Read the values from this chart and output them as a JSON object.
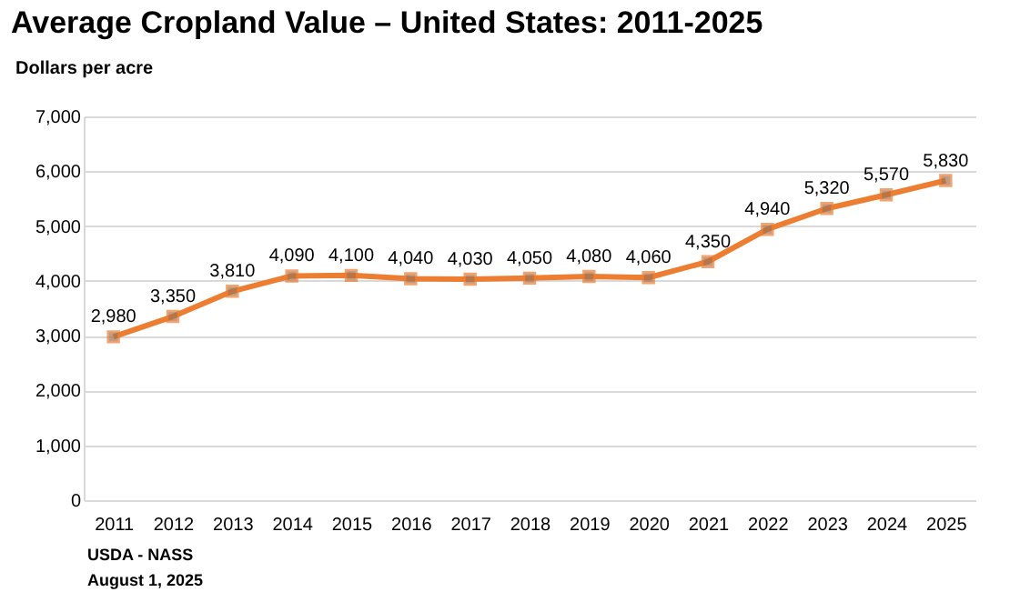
{
  "chart_data": {
    "type": "line",
    "title": "Average Cropland Value – United States: 2011-2025",
    "ylabel": "Dollars per acre",
    "categories": [
      "2011",
      "2012",
      "2013",
      "2014",
      "2015",
      "2016",
      "2017",
      "2018",
      "2019",
      "2020",
      "2021",
      "2022",
      "2023",
      "2024",
      "2025"
    ],
    "series": [
      {
        "color": "#ed7d31",
        "values": [
          2980,
          3350,
          3810,
          4090,
          4100,
          4040,
          4030,
          4050,
          4080,
          4060,
          4350,
          4940,
          5320,
          5570,
          5830
        ]
      }
    ],
    "value_labels": [
      "2,980",
      "3,350",
      "3,810",
      "4,090",
      "4,100",
      "4,040",
      "4,030",
      "4,050",
      "4,080",
      "4,060",
      "4,350",
      "4,940",
      "5,320",
      "5,570",
      "5,830"
    ],
    "ylim": [
      0,
      7000
    ],
    "yticks": [
      0,
      {
        "value": 1000,
        "label": "1,000"
      },
      {
        "value": 2000,
        "label": "2,000"
      },
      {
        "value": 3000,
        "label": "3,000"
      },
      {
        "value": 4000,
        "label": "4,000"
      },
      {
        "value": 5000,
        "label": "5,000"
      },
      {
        "value": 6000,
        "label": "6,000"
      },
      {
        "value": 7000,
        "label": "7,000"
      }
    ],
    "grid": "y",
    "marker": "square",
    "line_style": "solid",
    "annotations": [
      "USDA - NASS",
      "August 1, 2025"
    ]
  }
}
